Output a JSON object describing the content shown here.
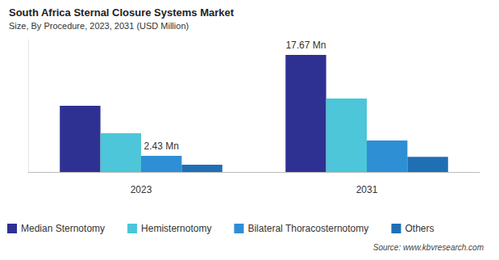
{
  "chart_data": {
    "type": "bar",
    "title": "South Africa Sternal Closure Systems Market",
    "subtitle": "Size, By Procedure, 2023, 2031 (USD Million)",
    "source": "Source: www.kbvresearch.com",
    "categories": [
      "2023",
      "2031"
    ],
    "series": [
      {
        "name": "Median Sternotomy",
        "color": "#2e3192",
        "values": [
          10.0,
          17.67
        ],
        "value_labels": [
          null,
          "17.67 Mn"
        ]
      },
      {
        "name": "Hemisternotomy",
        "color": "#4cc6d8",
        "values": [
          5.85,
          11.1
        ],
        "value_labels": [
          null,
          null
        ]
      },
      {
        "name": "Bilateral Thoracosternotomy",
        "color": "#2e8fd4",
        "values": [
          2.43,
          4.76
        ],
        "value_labels": [
          "2.43 Mn",
          null
        ]
      },
      {
        "name": "Others",
        "color": "#1f6fb5",
        "values": [
          1.1,
          2.3
        ],
        "value_labels": [
          null,
          null
        ]
      }
    ],
    "ylim": [
      0,
      20
    ],
    "yticks": [],
    "grid": false,
    "tick_labels": "x",
    "legend": "bottom"
  }
}
